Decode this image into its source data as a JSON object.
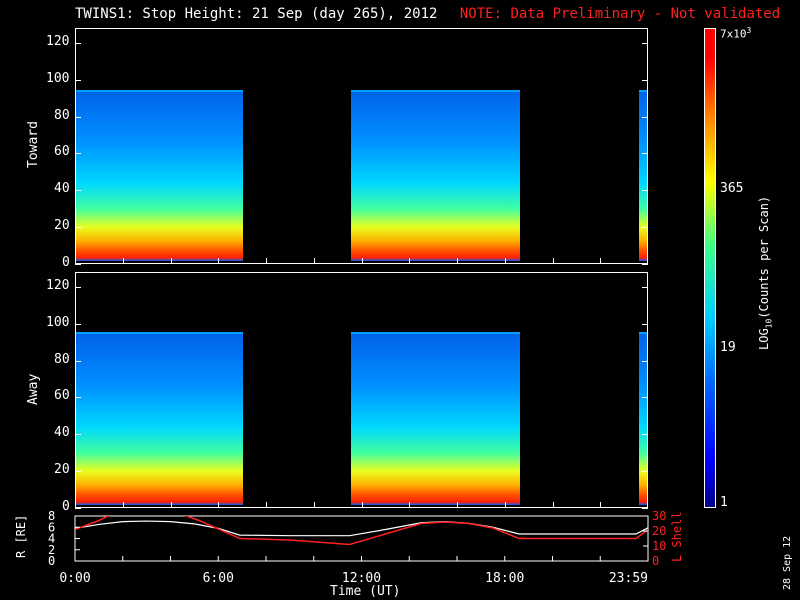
{
  "title": "TWINS1: Stop Height: 21 Sep (day 265), 2012",
  "note": "NOTE: Data Preliminary - Not validated",
  "datestamp": "28 Sep 12",
  "colorbar": {
    "label": "LOG10(Counts per Scan)",
    "ticks": [
      "7x10^3",
      "365",
      "19",
      "1"
    ]
  },
  "colors": {
    "note": "#ff2020",
    "l_shell": "#ff2020",
    "r_line": "#ffffff"
  },
  "chart_data": [
    {
      "type": "heatmap",
      "ylabel": "Toward",
      "ylim": [
        0,
        128
      ],
      "yticks": [
        0,
        20,
        40,
        60,
        80,
        100,
        120
      ],
      "xlim_hours": [
        0,
        24
      ],
      "data_blocks_hours": [
        [
          0,
          7.0
        ],
        [
          11.5,
          18.6
        ],
        [
          23.6,
          24
        ]
      ],
      "signal_top": 93,
      "colorscale": "log10 counts per scan, 1 to 7x10^3"
    },
    {
      "type": "heatmap",
      "ylabel": "Away",
      "ylim": [
        0,
        128
      ],
      "yticks": [
        0,
        20,
        40,
        60,
        80,
        100,
        120
      ],
      "xlim_hours": [
        0,
        24
      ],
      "data_blocks_hours": [
        [
          0,
          7.0
        ],
        [
          11.5,
          18.6
        ],
        [
          23.6,
          24
        ]
      ],
      "signal_top": 94,
      "colorscale": "log10 counts per scan, 1 to 7x10^3"
    },
    {
      "type": "line",
      "xlabel": "Time (UT)",
      "ylabel": "R [RE]",
      "y2label": "L Shell",
      "ylim": [
        0,
        8
      ],
      "y2lim": [
        0,
        30
      ],
      "yticks": [
        0,
        2,
        4,
        6,
        8
      ],
      "y2ticks": [
        0,
        10,
        20,
        30
      ],
      "xticklabels": [
        "0:00",
        "6:00",
        "12:00",
        "18:00",
        "23:59"
      ],
      "series": [
        {
          "name": "R [RE]",
          "x": [
            0,
            1,
            2,
            3,
            4,
            5,
            6,
            6.9,
            9,
            11.5,
            13,
            14.5,
            15.5,
            16.5,
            17.5,
            18.6,
            21,
            23.5,
            24
          ],
          "y": [
            5.8,
            6.5,
            7.0,
            7.1,
            7.0,
            6.6,
            5.8,
            4.6,
            4.5,
            4.5,
            5.6,
            6.8,
            7.0,
            6.7,
            6.0,
            4.8,
            4.8,
            4.8,
            5.9
          ]
        },
        {
          "name": "L Shell",
          "x": [
            0,
            1,
            1.5,
            4.5,
            5.2,
            6.9,
            9,
            11.5,
            13,
            14.5,
            15.5,
            16.5,
            17.5,
            18.6,
            21,
            23.5,
            24
          ],
          "y": [
            21,
            27,
            31,
            31,
            27,
            15,
            14,
            11,
            18,
            25,
            26,
            25,
            22,
            15,
            15,
            15,
            21
          ]
        }
      ]
    }
  ]
}
